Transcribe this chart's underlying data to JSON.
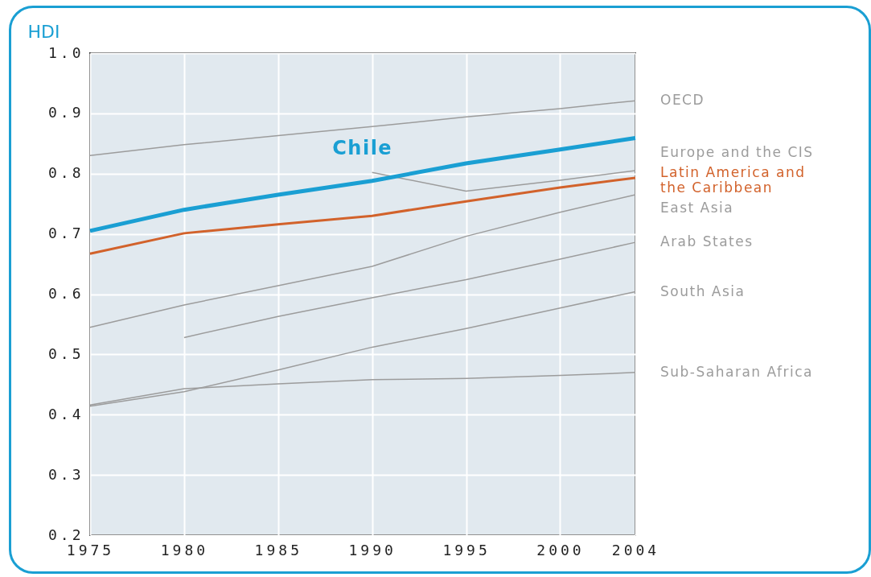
{
  "chart_data": {
    "type": "line",
    "ylabel": "HDI",
    "x": [
      1975,
      1980,
      1985,
      1990,
      1995,
      2000,
      2004
    ],
    "xlim": [
      1975,
      2004
    ],
    "xticks": [
      1975,
      1980,
      1985,
      1990,
      1995,
      2000,
      2004
    ],
    "ylim": [
      0.2,
      1
    ],
    "yticks": [
      0.2,
      0.3,
      0.4,
      0.5,
      0.6,
      0.7,
      0.8,
      0.9,
      {
        "value": 1,
        "label": "1.0"
      }
    ],
    "grid": true,
    "series": [
      {
        "name": "Chile",
        "color": "#1a9fd3",
        "values": [
          0.705,
          0.74,
          0.765,
          0.788,
          0.817,
          0.84,
          0.859
        ]
      },
      {
        "name": "Latin America and the Caribbean",
        "color": "#d2622b",
        "values": [
          0.667,
          0.701,
          0.716,
          0.73,
          0.754,
          0.777,
          0.793
        ]
      },
      {
        "name": "OECD",
        "color": "#9c9c9c",
        "values": [
          0.83,
          0.848,
          0.863,
          0.878,
          0.894,
          0.908,
          0.921
        ]
      },
      {
        "name": "Europe and the CIS",
        "color": "#9c9c9c",
        "values": [
          null,
          null,
          null,
          0.802,
          0.771,
          0.789,
          0.805
        ]
      },
      {
        "name": "East Asia",
        "color": "#9c9c9c",
        "values": [
          0.545,
          0.582,
          0.614,
          0.646,
          0.696,
          0.736,
          0.765
        ]
      },
      {
        "name": "Arab States",
        "color": "#9c9c9c",
        "values": [
          null,
          0.528,
          0.563,
          0.594,
          0.624,
          0.658,
          0.686
        ]
      },
      {
        "name": "South Asia",
        "color": "#9c9c9c",
        "values": [
          0.414,
          0.438,
          0.474,
          0.512,
          0.543,
          0.577,
          0.604
        ]
      },
      {
        "name": "Sub-Saharan Africa",
        "color": "#9c9c9c",
        "values": [
          0.416,
          0.443,
          0.451,
          0.458,
          0.46,
          0.465,
          0.47
        ]
      }
    ]
  }
}
